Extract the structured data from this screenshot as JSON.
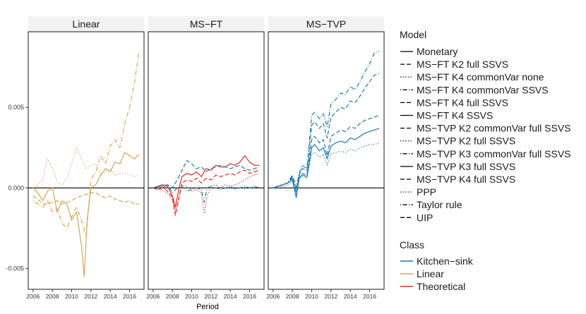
{
  "chart_data": {
    "type": "line",
    "xlabel": "Period",
    "ylabel": "",
    "xlim": [
      2005.5,
      2017.5
    ],
    "ylim": [
      -0.0063,
      0.0097
    ],
    "x_ticks": [
      2006,
      2008,
      2010,
      2012,
      2014,
      2016
    ],
    "x_tick_labels": [
      "2006",
      "2008",
      "2010",
      "2012",
      "2014",
      "2016"
    ],
    "y_ticks": [
      -0.005,
      0.0,
      0.005
    ],
    "y_tick_labels": [
      "-0.005",
      "0.000",
      "0.005"
    ],
    "grid": false,
    "hline": 0,
    "legend_placement": "right",
    "panels": [
      "Linear",
      "MS−FT",
      "MS−TVP"
    ],
    "colors": {
      "Kitchen-sink": "#1f78a8",
      "Linear": "#d4a456",
      "Theoretical": "#e8281a"
    },
    "legend": {
      "model_title": "Model",
      "models": [
        {
          "label": "Monetary",
          "dash": "solid"
        },
        {
          "label": "MS−FT K2 full SSVS",
          "dash": "dashed"
        },
        {
          "label": "MS−FT K4 commonVar none",
          "dash": "dotted"
        },
        {
          "label": "MS−FT K4 commonVar SSVS",
          "dash": "dotdash"
        },
        {
          "label": "MS−FT K4 full SSVS",
          "dash": "dashed"
        },
        {
          "label": "MS−FT K4 SSVS",
          "dash": "solid"
        },
        {
          "label": "MS−TVP K2 commonVar full SSVS",
          "dash": "dashed"
        },
        {
          "label": "MS−TVP K2 full SSVS",
          "dash": "dotted"
        },
        {
          "label": "MS−TVP K3 commonVar full SSVS",
          "dash": "dotdash"
        },
        {
          "label": "MS−TVP K3 full SSVS",
          "dash": "solid"
        },
        {
          "label": "MS−TVP K4 full SSVS",
          "dash": "dashed"
        },
        {
          "label": "PPP",
          "dash": "dotted"
        },
        {
          "label": "Taylor rule",
          "dash": "dotdash"
        },
        {
          "label": "UIP",
          "dash": "dashed"
        }
      ],
      "class_title": "Class",
      "classes": [
        {
          "label": "Kitchen−sink",
          "key": "Kitchen-sink"
        },
        {
          "label": "Linear",
          "key": "Linear"
        },
        {
          "label": "Theoretical",
          "key": "Theoretical"
        }
      ]
    },
    "series": [
      {
        "panel": 0,
        "name": "Monetary",
        "class": "Linear",
        "dash": "solid",
        "x": [
          2006,
          2006.5,
          2007,
          2007.5,
          2008,
          2008.5,
          2009,
          2009.5,
          2010,
          2010.5,
          2011,
          2011.3,
          2011.6,
          2012,
          2012.5,
          2013,
          2013.5,
          2014,
          2014.5,
          2015,
          2015.5,
          2016,
          2016.5,
          2017
        ],
        "values": [
          0.0,
          -0.0003,
          -0.0008,
          -0.0002,
          0.0,
          -0.0015,
          -0.0008,
          -0.001,
          -0.002,
          -0.0015,
          -0.0035,
          -0.0055,
          -0.002,
          0.0,
          0.0002,
          0.0008,
          0.0012,
          0.001,
          0.0016,
          0.0015,
          0.0022,
          0.002,
          0.0018,
          0.0021
        ]
      },
      {
        "panel": 0,
        "name": "Taylor rule",
        "class": "Linear",
        "dash": "dotdash",
        "x": [
          2006,
          2006.5,
          2007,
          2007.5,
          2008,
          2008.5,
          2009,
          2009.5,
          2010,
          2010.5,
          2011,
          2011.5,
          2012,
          2012.5,
          2013,
          2013.5,
          2014,
          2014.5,
          2015,
          2015.5,
          2016,
          2016.5,
          2017
        ],
        "values": [
          -0.0008,
          -0.001,
          -0.0012,
          -0.0008,
          -0.0015,
          -0.0013,
          -0.0022,
          -0.0025,
          -0.0018,
          -0.0012,
          -0.002,
          -0.003,
          0.0005,
          0.001,
          0.002,
          0.0015,
          0.0026,
          0.003,
          0.0025,
          0.004,
          0.005,
          0.0065,
          0.0085
        ]
      },
      {
        "panel": 0,
        "name": "PPP",
        "class": "Linear",
        "dash": "dotted",
        "x": [
          2006,
          2006.5,
          2007,
          2007.5,
          2008,
          2008.5,
          2009,
          2009.5,
          2010,
          2010.5,
          2011,
          2011.5,
          2012,
          2012.5,
          2013,
          2013.5,
          2014,
          2014.5,
          2015,
          2015.5,
          2016,
          2016.5,
          2017
        ],
        "values": [
          0.0,
          0.0002,
          0.0005,
          0.0018,
          0.0012,
          0.0004,
          0.0002,
          0.0006,
          0.0015,
          0.0025,
          0.0018,
          0.0012,
          0.0014,
          0.0015,
          0.0008,
          0.001,
          0.0012,
          0.0008,
          0.0009,
          0.0009,
          0.0008,
          0.0007,
          0.0008
        ]
      },
      {
        "panel": 0,
        "name": "UIP",
        "class": "Linear",
        "dash": "dashed",
        "x": [
          2006,
          2006.5,
          2007,
          2007.5,
          2008,
          2008.5,
          2009,
          2009.5,
          2010,
          2010.5,
          2011,
          2011.5,
          2012,
          2012.5,
          2013,
          2013.5,
          2014,
          2014.5,
          2015,
          2015.5,
          2016,
          2016.5,
          2017
        ],
        "values": [
          -0.0005,
          -0.0007,
          -0.001,
          -0.001,
          -0.0009,
          -0.0008,
          -0.001,
          -0.0009,
          -0.0008,
          -0.0006,
          -0.0005,
          -0.0004,
          -0.0003,
          -0.0003,
          -0.0005,
          -0.0006,
          -0.0005,
          -0.0007,
          -0.0008,
          -0.0009,
          -0.0008,
          -0.001,
          -0.001
        ]
      },
      {
        "panel": 1,
        "name": "MS−FT K4 SSVS",
        "class": "Theoretical",
        "dash": "solid",
        "x": [
          2006,
          2006.5,
          2007,
          2007.5,
          2008,
          2008.3,
          2008.7,
          2009,
          2009.5,
          2010,
          2010.5,
          2011,
          2011.5,
          2012,
          2012.5,
          2013,
          2013.5,
          2014,
          2014.5,
          2015,
          2015.5,
          2016,
          2016.5,
          2017
        ],
        "values": [
          0.0,
          0.0001,
          0.0002,
          0.0001,
          -0.0005,
          -0.0012,
          0.0,
          0.0007,
          0.0009,
          0.0008,
          0.001,
          0.0007,
          0.0012,
          0.0011,
          0.0014,
          0.0013,
          0.0013,
          0.0015,
          0.0014,
          0.0016,
          0.002,
          0.0016,
          0.0014,
          0.0014
        ]
      },
      {
        "panel": 1,
        "name": "MS−FT K4 commonVar none",
        "class": "Theoretical",
        "dash": "dotted",
        "x": [
          2006,
          2006.5,
          2007,
          2007.5,
          2008,
          2008.3,
          2008.7,
          2009,
          2009.5,
          2010,
          2010.5,
          2011,
          2011.3,
          2011.6,
          2012,
          2012.5,
          2013,
          2013.5,
          2014,
          2014.5,
          2015,
          2015.5,
          2016,
          2016.5,
          2017
        ],
        "values": [
          0.0,
          -0.0001,
          -0.0002,
          -0.0003,
          -0.0008,
          -0.0015,
          -0.0005,
          0.0002,
          0.0001,
          -0.0002,
          -0.0001,
          -0.0003,
          -0.0016,
          -0.0005,
          0.0001,
          0.0002,
          0.0,
          0.0002,
          0.0001,
          0.0002,
          0.0003,
          0.0005,
          0.0007,
          0.0008,
          0.0009
        ]
      },
      {
        "panel": 1,
        "name": "MS−FT K2 full SSVS",
        "class": "Theoretical",
        "dash": "dashed",
        "x": [
          2006,
          2006.5,
          2007,
          2007.5,
          2008,
          2008.3,
          2008.7,
          2009,
          2009.5,
          2010,
          2010.5,
          2011,
          2011.5,
          2012,
          2012.5,
          2013,
          2013.5,
          2014,
          2014.5,
          2015,
          2015.5,
          2016,
          2016.5,
          2017
        ],
        "values": [
          0.0,
          -0.0001,
          0.0,
          -0.0002,
          -0.0006,
          -0.0017,
          -0.0006,
          0.0003,
          0.0005,
          0.0004,
          0.0006,
          0.0003,
          0.0006,
          0.0005,
          0.0008,
          0.0007,
          0.0008,
          0.0009,
          0.0008,
          0.001,
          0.0011,
          0.0009,
          0.001,
          0.0011
        ]
      },
      {
        "panel": 1,
        "name": "MS−FT K4 full SSVS",
        "class": "Kitchen-sink",
        "dash": "dashed",
        "x": [
          2006,
          2006.5,
          2007,
          2007.5,
          2008,
          2008.5,
          2009,
          2009.5,
          2010,
          2010.5,
          2011,
          2011.5,
          2012,
          2012.5,
          2013,
          2013.5,
          2014,
          2014.5,
          2015,
          2015.5,
          2016,
          2016.5,
          2017
        ],
        "values": [
          0.0,
          0.0001,
          0.0001,
          0.0002,
          0.0,
          0.0005,
          0.0011,
          0.0017,
          0.0015,
          0.0012,
          0.0013,
          0.001,
          0.0012,
          0.0013,
          0.0014,
          0.0013,
          0.0012,
          0.0013,
          0.0014,
          0.0012,
          0.0011,
          0.0012,
          0.0013
        ]
      },
      {
        "panel": 1,
        "name": "MS−FT K4 commonVar SSVS",
        "class": "Kitchen-sink",
        "dash": "dotdash",
        "x": [
          2006,
          2006.5,
          2007,
          2007.5,
          2008,
          2008.5,
          2009,
          2009.5,
          2010,
          2010.5,
          2011,
          2011.3,
          2011.6,
          2012,
          2012.5,
          2013,
          2013.5,
          2014,
          2014.5,
          2015,
          2015.5,
          2016,
          2016.5,
          2017
        ],
        "values": [
          0.0,
          0.0001,
          0.0,
          0.0002,
          -0.0003,
          0.0,
          0.0001,
          -0.0002,
          -0.0001,
          0.0,
          -0.0001,
          -0.0009,
          0.0,
          0.0001,
          0.0,
          -0.0001,
          0.0,
          0.0001,
          -0.0001,
          0.0,
          0.0001,
          0.0,
          0.0001,
          0.0
        ]
      },
      {
        "panel": 2,
        "name": "MS−TVP K3 commonVar full SSVS",
        "class": "Kitchen-sink",
        "dash": "dotdash",
        "x": [
          2006,
          2006.5,
          2007,
          2007.5,
          2008,
          2008.4,
          2008.7,
          2009,
          2009.5,
          2010,
          2010.3,
          2010.8,
          2011.2,
          2011.6,
          2012,
          2012.5,
          2013,
          2013.5,
          2014,
          2014.5,
          2015,
          2015.5,
          2016,
          2016.5,
          2017
        ],
        "values": [
          0.0,
          0.0001,
          0.0002,
          0.0003,
          0.0008,
          0.0,
          0.0009,
          0.0014,
          0.0012,
          0.0045,
          0.0047,
          0.0043,
          0.0046,
          0.0038,
          0.0052,
          0.0055,
          0.0059,
          0.0058,
          0.0063,
          0.0061,
          0.0066,
          0.0072,
          0.0077,
          0.0084,
          0.0085
        ]
      },
      {
        "panel": 2,
        "name": "MS−TVP K4 full SSVS",
        "class": "Kitchen-sink",
        "dash": "dashed",
        "x": [
          2006,
          2006.5,
          2007,
          2007.5,
          2008,
          2008.4,
          2008.7,
          2009,
          2009.5,
          2010,
          2010.3,
          2010.8,
          2011.2,
          2011.6,
          2012,
          2012.5,
          2013,
          2013.5,
          2014,
          2014.5,
          2015,
          2015.5,
          2016,
          2016.5,
          2017
        ],
        "values": [
          0.0,
          0.0001,
          0.0002,
          0.0003,
          0.0007,
          -0.0001,
          0.0008,
          0.0012,
          0.0011,
          0.0039,
          0.0041,
          0.0037,
          0.004,
          0.0031,
          0.0044,
          0.0047,
          0.005,
          0.0049,
          0.0054,
          0.0053,
          0.0057,
          0.0062,
          0.0066,
          0.007,
          0.0071
        ]
      },
      {
        "panel": 2,
        "name": "MS−TVP K2 commonVar full SSVS",
        "class": "Kitchen-sink",
        "dash": "dashed",
        "x": [
          2006,
          2006.5,
          2007,
          2007.5,
          2008,
          2008.4,
          2008.7,
          2009,
          2009.5,
          2010,
          2010.3,
          2010.8,
          2011.2,
          2011.6,
          2012,
          2012.5,
          2013,
          2013.5,
          2014,
          2014.5,
          2015,
          2015.5,
          2016,
          2016.5,
          2017
        ],
        "values": [
          0.0,
          0.0001,
          0.0002,
          0.0003,
          0.0006,
          -0.0003,
          0.0007,
          0.0009,
          0.0008,
          0.003,
          0.0032,
          0.0028,
          0.003,
          0.002,
          0.0032,
          0.0034,
          0.0036,
          0.0035,
          0.0038,
          0.0037,
          0.004,
          0.0042,
          0.0043,
          0.0044,
          0.0045
        ]
      },
      {
        "panel": 2,
        "name": "MS−TVP K3 full SSVS",
        "class": "Kitchen-sink",
        "dash": "solid",
        "x": [
          2006,
          2006.5,
          2007,
          2007.5,
          2008,
          2008.4,
          2008.7,
          2009,
          2009.5,
          2010,
          2010.3,
          2010.8,
          2011.2,
          2011.6,
          2012,
          2012.5,
          2013,
          2013.5,
          2014,
          2014.5,
          2015,
          2015.5,
          2016,
          2016.5,
          2017
        ],
        "values": [
          0.0,
          0.0001,
          0.0002,
          0.0003,
          0.0005,
          -0.0006,
          0.0006,
          0.0008,
          0.0007,
          0.0025,
          0.0027,
          0.0023,
          0.0025,
          0.0018,
          0.0026,
          0.0028,
          0.0029,
          0.0028,
          0.0031,
          0.003,
          0.0032,
          0.0034,
          0.0035,
          0.0036,
          0.0037
        ]
      },
      {
        "panel": 2,
        "name": "MS−TVP K2 full SSVS",
        "class": "Kitchen-sink",
        "dash": "dotted",
        "x": [
          2006,
          2006.5,
          2007,
          2007.5,
          2008,
          2008.4,
          2008.7,
          2009,
          2009.5,
          2010,
          2010.3,
          2010.8,
          2011.2,
          2011.6,
          2012,
          2012.5,
          2013,
          2013.5,
          2014,
          2014.5,
          2015,
          2015.5,
          2016,
          2016.5,
          2017
        ],
        "values": [
          0.0,
          0.0001,
          0.0001,
          0.0002,
          0.0004,
          -0.0004,
          0.0005,
          0.0007,
          0.0006,
          0.0021,
          0.0022,
          0.0019,
          0.0021,
          0.0014,
          0.0021,
          0.0022,
          0.0023,
          0.0022,
          0.0024,
          0.0023,
          0.0025,
          0.0026,
          0.0027,
          0.0027,
          0.0028
        ]
      }
    ]
  }
}
